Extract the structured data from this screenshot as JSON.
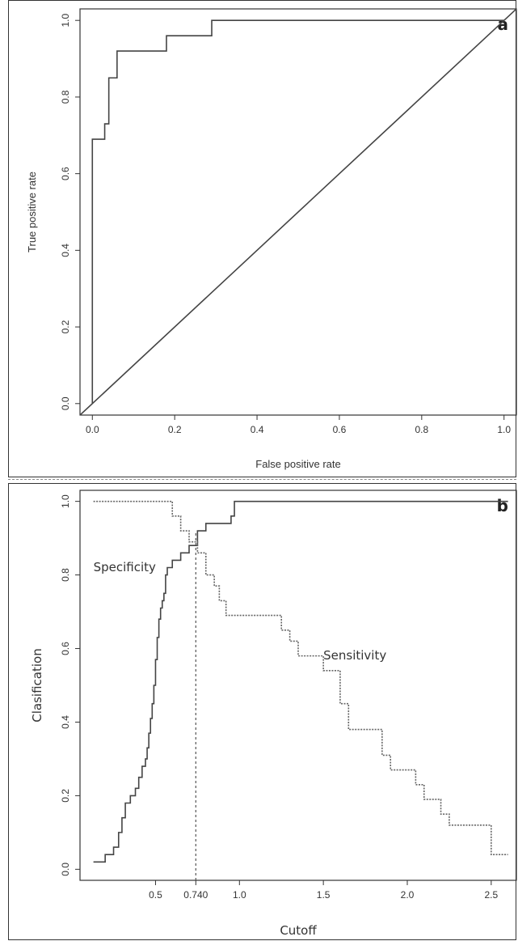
{
  "chart_data": [
    {
      "type": "line",
      "panel_label": "a",
      "xlabel": "False positive rate",
      "ylabel": "True positive rate",
      "xlim": [
        -0.03,
        1.03
      ],
      "ylim": [
        -0.03,
        1.03
      ],
      "xticks": [
        0.0,
        0.2,
        0.4,
        0.6,
        0.8,
        1.0
      ],
      "yticks": [
        0.0,
        0.2,
        0.4,
        0.6,
        0.8,
        1.0
      ],
      "xtick_labels": [
        "0.0",
        "0.2",
        "0.4",
        "0.6",
        "0.8",
        "1.0"
      ],
      "ytick_labels": [
        "0.0",
        "0.2",
        "0.4",
        "0.6",
        "0.8",
        "1.0"
      ],
      "grid": false,
      "series": [
        {
          "style": "solid-step",
          "x": [
            0.0,
            0.0,
            0.03,
            0.03,
            0.04,
            0.04,
            0.06,
            0.06,
            0.18,
            0.18,
            0.29,
            0.29,
            1.0
          ],
          "y": [
            0.0,
            0.69,
            0.69,
            0.73,
            0.73,
            0.85,
            0.85,
            0.92,
            0.92,
            0.96,
            0.96,
            1.0,
            1.0
          ]
        },
        {
          "style": "reference-diagonal",
          "x": [
            -0.03,
            1.03
          ],
          "y": [
            -0.03,
            1.03
          ]
        }
      ]
    },
    {
      "type": "line",
      "panel_label": "b",
      "xlabel": "Cutoff",
      "ylabel": "Clasification",
      "xlim": [
        0.05,
        2.65
      ],
      "ylim": [
        -0.03,
        1.03
      ],
      "xticks": [
        0.5,
        0.74,
        1.0,
        1.5,
        2.0,
        2.5
      ],
      "xtick_labels": [
        "0.5",
        "0.740",
        "1.0",
        "1.5",
        "2.0",
        "2.5"
      ],
      "yticks": [
        0.0,
        0.2,
        0.4,
        0.6,
        0.8,
        1.0
      ],
      "ytick_labels": [
        "0.0",
        "0.2",
        "0.4",
        "0.6",
        "0.8",
        "1.0"
      ],
      "grid": false,
      "cutoff_line": {
        "x": 0.74,
        "y": 0.92
      },
      "series": [
        {
          "name": "Specificity",
          "style": "solid-step",
          "x": [
            0.13,
            0.2,
            0.25,
            0.28,
            0.3,
            0.32,
            0.35,
            0.38,
            0.4,
            0.42,
            0.44,
            0.45,
            0.46,
            0.47,
            0.48,
            0.49,
            0.5,
            0.51,
            0.52,
            0.53,
            0.54,
            0.55,
            0.56,
            0.57,
            0.6,
            0.65,
            0.7,
            0.75,
            0.8,
            0.95,
            0.97,
            2.6
          ],
          "y": [
            0.02,
            0.04,
            0.06,
            0.1,
            0.14,
            0.18,
            0.2,
            0.22,
            0.25,
            0.28,
            0.3,
            0.33,
            0.37,
            0.41,
            0.45,
            0.5,
            0.57,
            0.63,
            0.68,
            0.71,
            0.73,
            0.75,
            0.8,
            0.82,
            0.84,
            0.86,
            0.88,
            0.92,
            0.94,
            0.96,
            1.0,
            1.0
          ]
        },
        {
          "name": "Sensitivity",
          "style": "dotted-step",
          "x": [
            0.13,
            0.6,
            0.65,
            0.7,
            0.75,
            0.8,
            0.85,
            0.88,
            0.92,
            0.96,
            1.25,
            1.3,
            1.35,
            1.5,
            1.6,
            1.65,
            1.7,
            1.85,
            1.9,
            2.0,
            2.05,
            2.1,
            2.2,
            2.25,
            2.3,
            2.5,
            2.6
          ],
          "y": [
            1.0,
            0.96,
            0.92,
            0.89,
            0.86,
            0.8,
            0.77,
            0.73,
            0.69,
            0.69,
            0.65,
            0.62,
            0.58,
            0.54,
            0.45,
            0.38,
            0.38,
            0.31,
            0.27,
            0.27,
            0.23,
            0.19,
            0.15,
            0.12,
            0.12,
            0.04,
            0.04
          ]
        }
      ],
      "annotations": [
        {
          "text": "Specificity",
          "x": 0.13,
          "y": 0.81
        },
        {
          "text": "Sensitivity",
          "x": 1.5,
          "y": 0.57
        }
      ]
    }
  ]
}
